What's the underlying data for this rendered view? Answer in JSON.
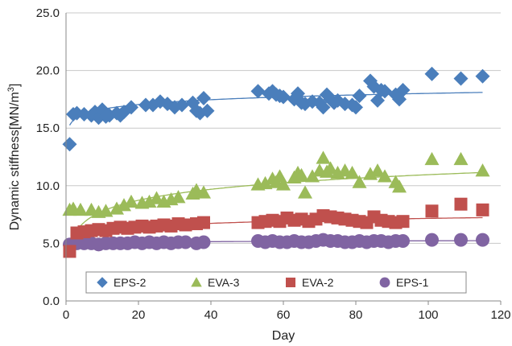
{
  "chart_data": {
    "type": "scatter",
    "title": "",
    "xlabel": "Day",
    "ylabel": "Dynamic stiffness[MN/m",
    "ylabel_sup": "3",
    "ylabel_end": "]",
    "xlim": [
      0,
      120
    ],
    "ylim": [
      0,
      25
    ],
    "x_ticks": [
      0,
      20,
      40,
      60,
      80,
      100,
      120
    ],
    "y_ticks": [
      0.0,
      5.0,
      10.0,
      15.0,
      20.0,
      25.0
    ],
    "y_tick_labels": [
      "0.0",
      "5.0",
      "10.0",
      "15.0",
      "20.0",
      "25.0"
    ],
    "grid": true,
    "legend_position": "bottom-inside",
    "series": [
      {
        "name": "EPS-2",
        "color": "#4a7ebb",
        "marker": "diamond",
        "x": [
          1,
          2,
          3,
          5,
          7,
          8,
          9,
          10,
          11,
          12,
          14,
          15,
          16,
          18,
          22,
          24,
          26,
          28,
          30,
          32,
          35,
          36,
          37,
          38,
          39,
          53,
          56,
          57,
          58,
          59,
          60,
          63,
          64,
          65,
          66,
          68,
          70,
          71,
          72,
          73,
          74,
          75,
          77,
          79,
          80,
          81,
          84,
          85,
          86,
          87,
          88,
          91,
          92,
          93,
          101,
          109,
          115
        ],
        "y": [
          13.6,
          16.2,
          16.3,
          16.2,
          16.1,
          16.4,
          15.9,
          16.6,
          16.0,
          16.1,
          16.3,
          16.1,
          16.4,
          16.8,
          17.0,
          17.0,
          17.3,
          17.1,
          16.8,
          17.0,
          17.2,
          16.5,
          16.3,
          17.6,
          16.5,
          18.2,
          18.0,
          18.2,
          17.9,
          17.8,
          17.7,
          17.5,
          18.0,
          17.2,
          17.1,
          17.3,
          17.2,
          16.8,
          17.9,
          17.5,
          17.2,
          17.4,
          17.1,
          17.0,
          16.8,
          17.8,
          19.1,
          18.6,
          17.4,
          18.3,
          18.2,
          17.9,
          17.5,
          18.3,
          19.7,
          19.3,
          19.5
        ]
      },
      {
        "name": "EVA-3",
        "color": "#9bbb59",
        "marker": "triangle",
        "x": [
          1,
          2,
          4,
          7,
          9,
          11,
          14,
          16,
          18,
          21,
          23,
          25,
          27,
          29,
          31,
          35,
          36,
          38,
          53,
          55,
          57,
          58,
          59,
          60,
          63,
          64,
          65,
          66,
          68,
          70,
          71,
          72,
          73,
          75,
          77,
          79,
          81,
          84,
          86,
          88,
          91,
          92,
          101,
          109,
          115
        ],
        "y": [
          7.9,
          8.0,
          7.9,
          7.9,
          7.7,
          7.8,
          8.0,
          8.3,
          8.6,
          8.5,
          8.6,
          8.9,
          8.6,
          8.8,
          9.0,
          9.3,
          9.6,
          9.4,
          10.1,
          10.2,
          10.6,
          10.3,
          10.8,
          10.1,
          10.7,
          11.1,
          10.9,
          9.4,
          10.8,
          11.3,
          12.4,
          11.2,
          11.5,
          11.1,
          11.3,
          11.1,
          10.3,
          11.0,
          11.3,
          10.8,
          10.3,
          9.9,
          12.3,
          12.3,
          11.3
        ]
      },
      {
        "name": "EVA-2",
        "color": "#c0504d",
        "marker": "square",
        "x": [
          1,
          3,
          5,
          7,
          9,
          11,
          13,
          15,
          17,
          19,
          21,
          23,
          25,
          27,
          29,
          31,
          33,
          36,
          38,
          53,
          55,
          57,
          59,
          61,
          63,
          65,
          67,
          69,
          71,
          73,
          75,
          77,
          79,
          81,
          83,
          85,
          87,
          89,
          91,
          93,
          101,
          109,
          115
        ],
        "y": [
          4.3,
          5.9,
          6.0,
          6.1,
          6.2,
          6.1,
          6.3,
          6.4,
          6.3,
          6.4,
          6.5,
          6.4,
          6.5,
          6.6,
          6.5,
          6.7,
          6.6,
          6.7,
          6.8,
          6.8,
          6.9,
          7.0,
          6.9,
          7.2,
          7.0,
          7.1,
          6.9,
          7.1,
          7.4,
          7.3,
          7.2,
          7.1,
          7.0,
          6.9,
          6.8,
          7.3,
          7.0,
          6.9,
          6.8,
          6.9,
          7.8,
          8.4,
          7.9
        ]
      },
      {
        "name": "EPS-1",
        "color": "#8064a2",
        "marker": "circle",
        "x": [
          1,
          3,
          5,
          7,
          9,
          11,
          13,
          15,
          17,
          19,
          21,
          23,
          25,
          27,
          29,
          31,
          33,
          36,
          38,
          53,
          55,
          57,
          59,
          61,
          63,
          65,
          67,
          69,
          71,
          73,
          75,
          77,
          79,
          81,
          83,
          85,
          87,
          89,
          91,
          93,
          101,
          109,
          115
        ],
        "y": [
          4.9,
          5.0,
          5.0,
          5.0,
          4.9,
          5.0,
          5.0,
          5.0,
          5.0,
          5.1,
          5.0,
          5.1,
          5.0,
          5.1,
          5.0,
          5.1,
          5.1,
          5.0,
          5.1,
          5.2,
          5.1,
          5.2,
          5.1,
          5.1,
          5.2,
          5.1,
          5.1,
          5.2,
          5.3,
          5.2,
          5.2,
          5.1,
          5.1,
          5.2,
          5.1,
          5.2,
          5.2,
          5.1,
          5.2,
          5.2,
          5.3,
          5.3,
          5.3
        ]
      }
    ],
    "trendlines": [
      {
        "series": "EPS-2",
        "color": "#4a7ebb",
        "a": 15.25,
        "b": 0.6,
        "type": "logarithmic"
      },
      {
        "series": "EVA-3",
        "color": "#9bbb59",
        "a": 4.6,
        "b": 1.38,
        "type": "logarithmic"
      },
      {
        "series": "EVA-2",
        "color": "#c0504d",
        "a": 5.0,
        "b": 0.47,
        "type": "logarithmic"
      },
      {
        "series": "EPS-1",
        "color": "#8064a2",
        "a": 4.85,
        "b": 0.08,
        "type": "logarithmic"
      }
    ]
  }
}
